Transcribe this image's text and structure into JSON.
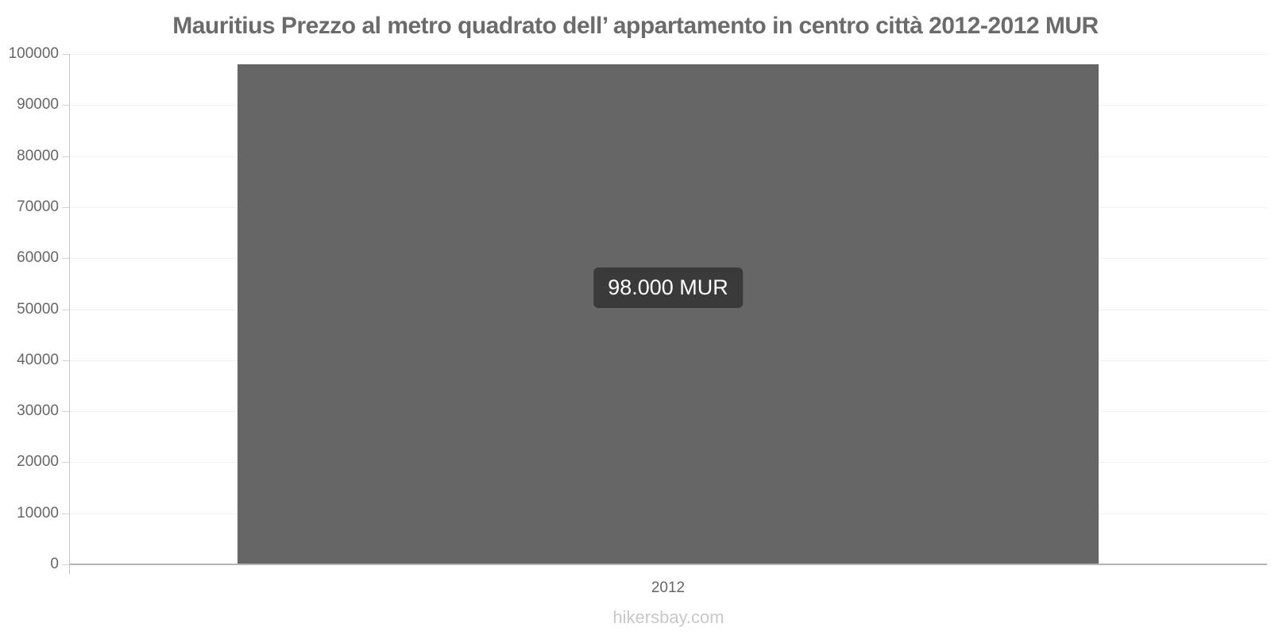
{
  "header": {
    "title": "Mauritius Prezzo al metro quadrato dell’ appartamento in centro città 2012-2012 MUR"
  },
  "footer": {
    "watermark": "hikersbay.com"
  },
  "chart_data": {
    "type": "bar",
    "title": "Mauritius Prezzo al metro quadrato dell’ appartamento in centro città 2012-2012 MUR",
    "categories": [
      "2012"
    ],
    "values": [
      98000
    ],
    "data_labels": [
      "98.000 MUR"
    ],
    "unit": "MUR",
    "xlabel": "",
    "ylabel": "",
    "ylim": [
      0,
      100000
    ],
    "ytick_step": 10000,
    "ytick_labels": [
      "0",
      "10000",
      "20000",
      "30000",
      "40000",
      "50000",
      "60000",
      "70000",
      "80000",
      "90000",
      "100000"
    ],
    "grid": "horizontal-faint",
    "legend": "none"
  },
  "colors": {
    "bar": "#666666",
    "tooltip_bg": "#3a3a3a",
    "tooltip_text": "#ffffff",
    "title_text": "#6b6b6b",
    "axis_label": "#666666",
    "axis_line": "#c4c4c4",
    "grid_line": "#f2f2f2",
    "footer_text": "#c8c8c8",
    "background": "#ffffff"
  }
}
